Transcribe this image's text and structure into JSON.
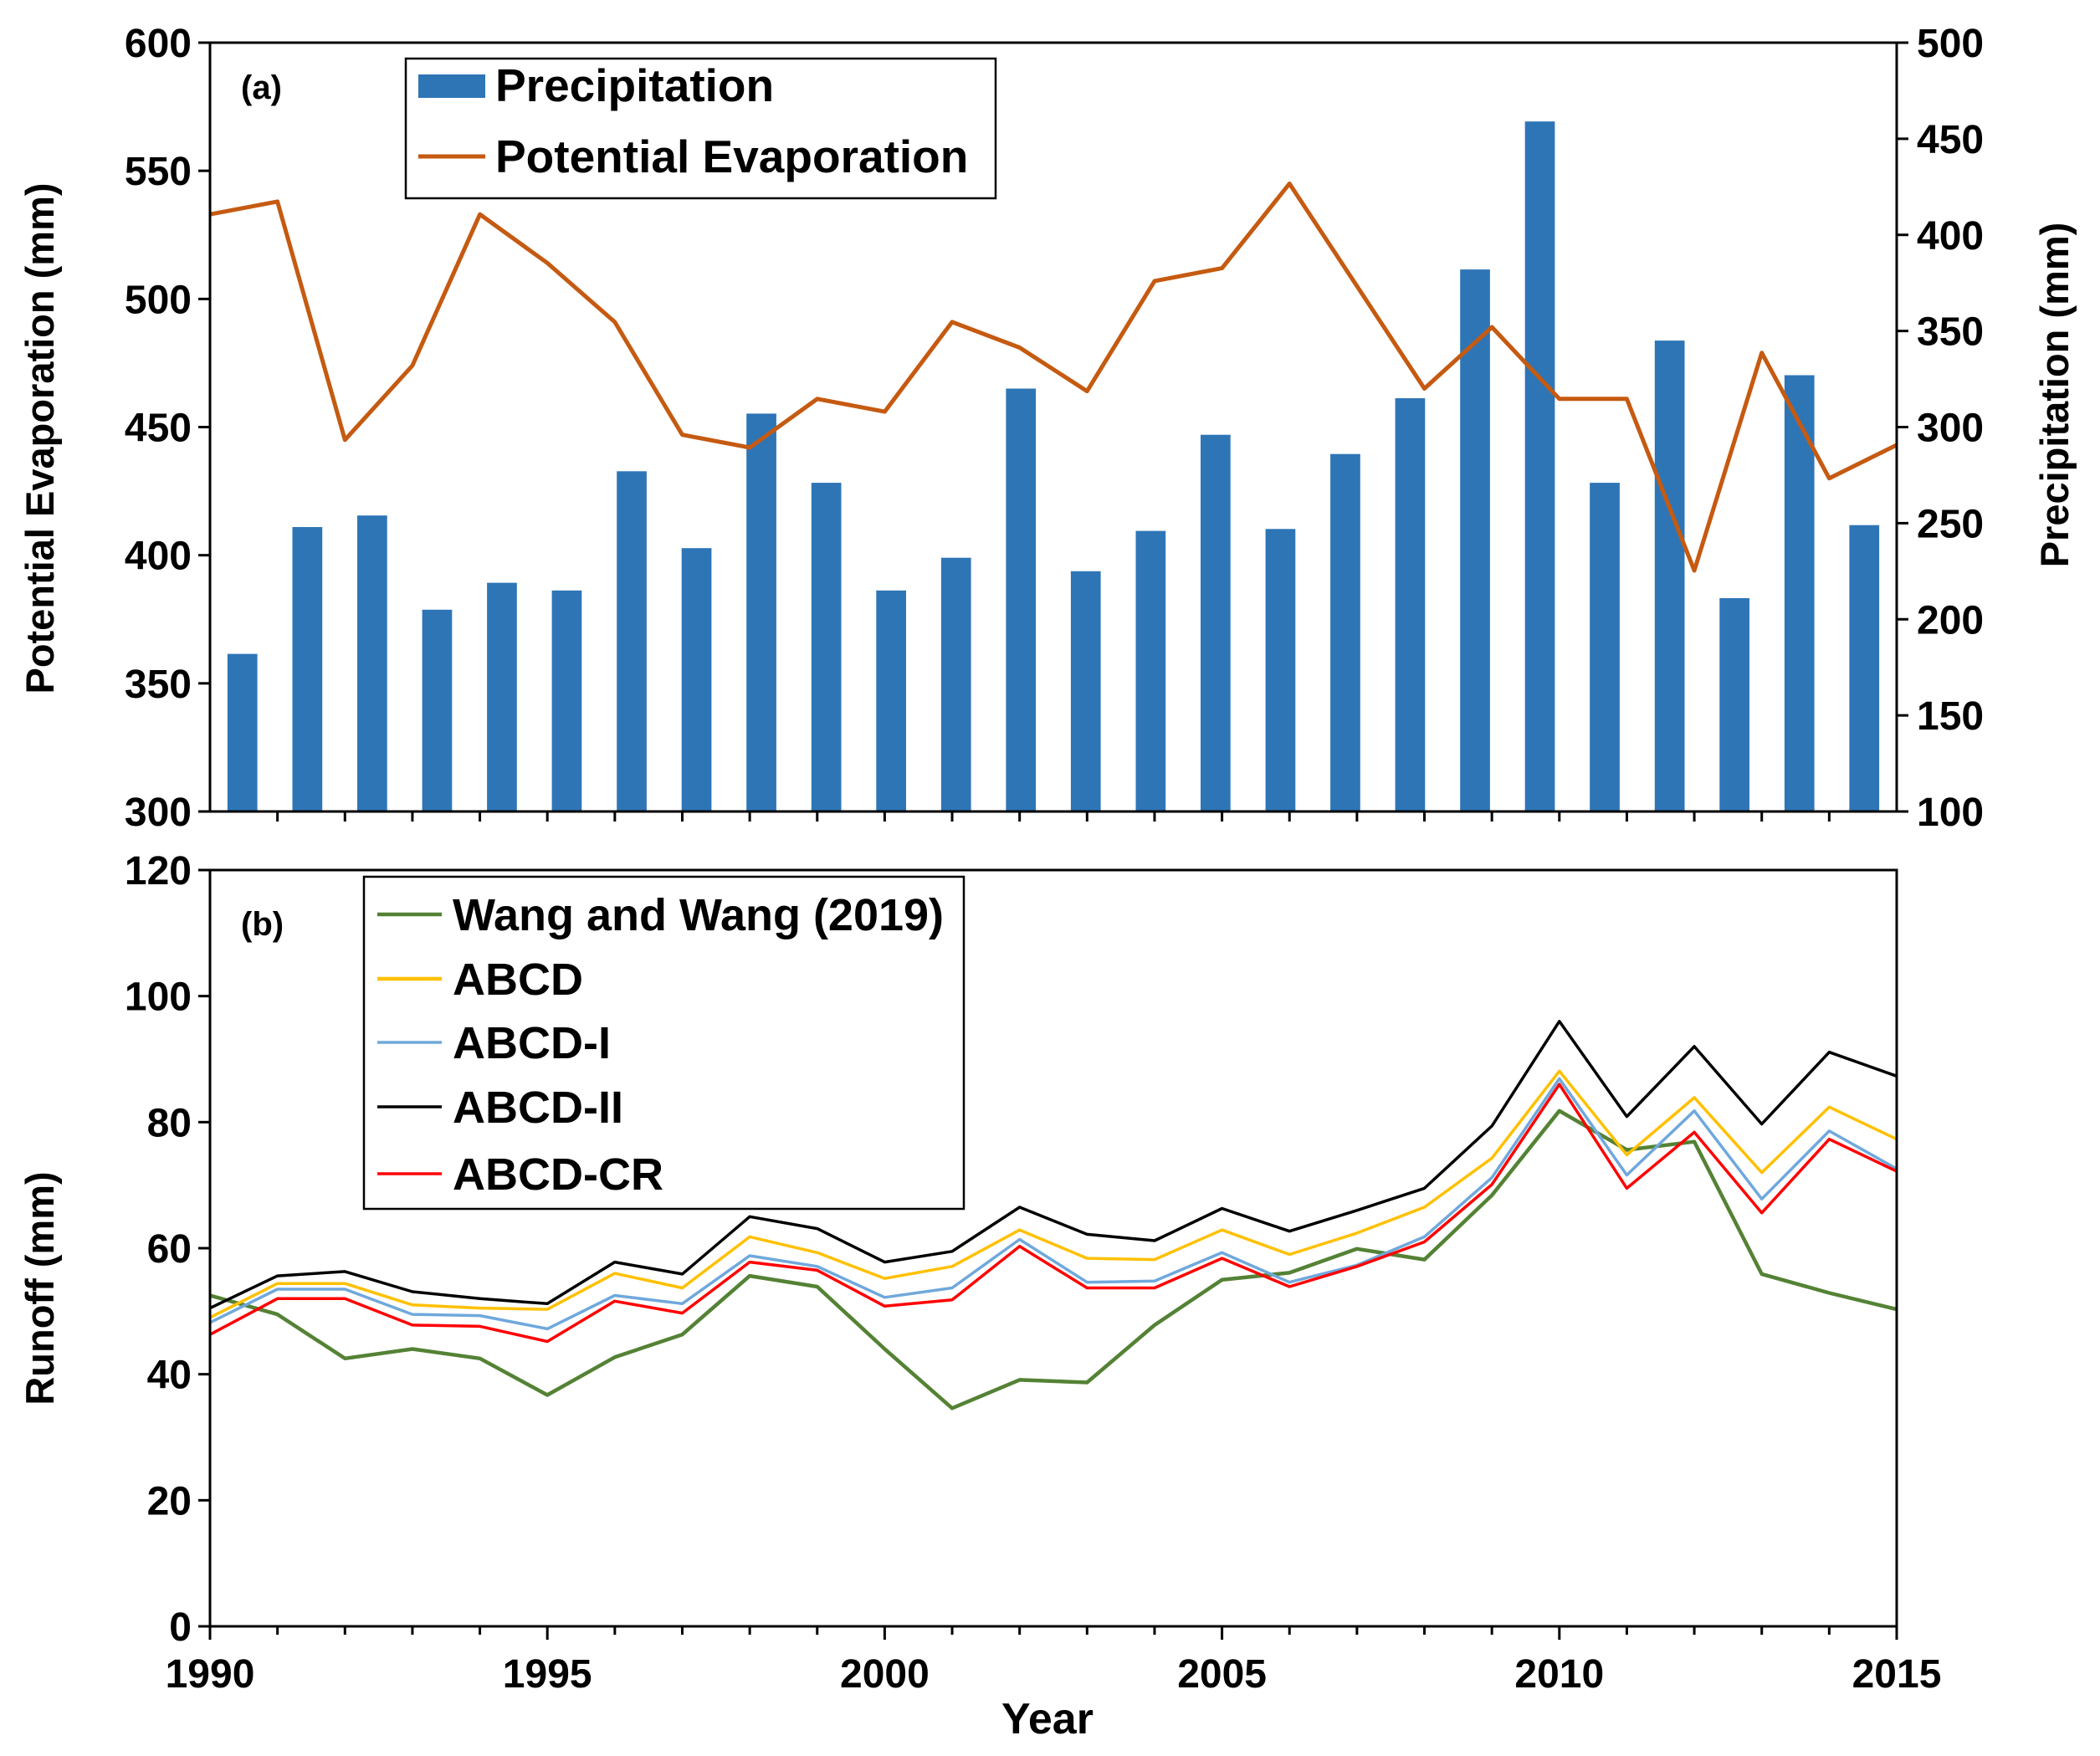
{
  "chart_data": [
    {
      "type": "bar",
      "panel_label": "(a)",
      "x": [
        1990,
        1991,
        1992,
        1993,
        1994,
        1995,
        1996,
        1997,
        1998,
        1999,
        2000,
        2001,
        2002,
        2003,
        2004,
        2005,
        2006,
        2007,
        2008,
        2009,
        2010,
        2011,
        2012,
        2013,
        2014,
        2015
      ],
      "series": [
        {
          "name": "Precipitation",
          "type": "bar",
          "secondary_axis": true,
          "color": "#2E75B6",
          "values": [
            182,
            248,
            254,
            205,
            219,
            215,
            277,
            237,
            307,
            271,
            215,
            232,
            320,
            225,
            246,
            296,
            247,
            286,
            315,
            382,
            459,
            271,
            345,
            211,
            327,
            249
          ]
        },
        {
          "name": "Potential Evaporation",
          "type": "line",
          "secondary_axis": false,
          "color": "#C55A11",
          "values": [
            533,
            538,
            445,
            474,
            533,
            514,
            491,
            447,
            442,
            461,
            456,
            491,
            481,
            464,
            507,
            512,
            545,
            505,
            465,
            489,
            461,
            461,
            394,
            479,
            430,
            443
          ]
        }
      ],
      "ylabel": "Potential Evaporation (mm)",
      "ylim": [
        300,
        600
      ],
      "yticks": [
        300,
        350,
        400,
        450,
        500,
        550,
        600
      ],
      "y2label": "Precipitation (mm)",
      "y2lim": [
        100,
        500
      ],
      "y2ticks": [
        100,
        150,
        200,
        250,
        300,
        350,
        400,
        450,
        500
      ],
      "grid": false,
      "legend": "top-left"
    },
    {
      "type": "line",
      "panel_label": "(b)",
      "x": [
        1990,
        1991,
        1992,
        1993,
        1994,
        1995,
        1996,
        1997,
        1998,
        1999,
        2000,
        2001,
        2002,
        2003,
        2004,
        2005,
        2006,
        2007,
        2008,
        2009,
        2010,
        2011,
        2012,
        2013,
        2014,
        2015
      ],
      "xlabel": "Year",
      "xlim": [
        1990,
        2015
      ],
      "xticks": [
        1990,
        1995,
        2000,
        2005,
        2010,
        2015
      ],
      "ylabel": "Runoff (mm)",
      "ylim": [
        0,
        120
      ],
      "yticks": [
        0,
        20,
        40,
        60,
        80,
        100,
        120
      ],
      "grid": false,
      "legend": "top-left",
      "series": [
        {
          "name": "Wang and Wang (2019)",
          "color": "#548235",
          "values": [
            52.5,
            49.5,
            42.5,
            44.0,
            42.5,
            36.7,
            42.7,
            46.3,
            55.6,
            53.9,
            44.0,
            34.6,
            39.1,
            38.7,
            47.8,
            55.0,
            56.1,
            59.9,
            58.2,
            68.4,
            81.8,
            75.6,
            76.9,
            55.9,
            52.9,
            50.3
          ]
        },
        {
          "name": "ABCD",
          "color": "#FFC000",
          "values": [
            49.0,
            54.4,
            54.4,
            51.0,
            50.5,
            50.3,
            56.0,
            53.7,
            61.8,
            59.3,
            55.2,
            57.1,
            62.9,
            58.4,
            58.2,
            62.9,
            59.0,
            62.4,
            66.5,
            74.3,
            88.1,
            74.8,
            83.9,
            72.0,
            82.4,
            77.3
          ]
        },
        {
          "name": "ABCD-I",
          "color": "#6FA8DC",
          "values": [
            48.2,
            53.5,
            53.5,
            49.5,
            49.3,
            47.2,
            52.5,
            51.2,
            58.8,
            57.1,
            52.2,
            53.7,
            61.4,
            54.6,
            54.8,
            59.3,
            54.6,
            57.3,
            61.8,
            71.2,
            86.9,
            71.6,
            81.8,
            67.8,
            78.6,
            72.6
          ]
        },
        {
          "name": "ABCD-II",
          "color": "#000000",
          "values": [
            50.5,
            55.6,
            56.3,
            53.1,
            52.0,
            51.2,
            57.8,
            55.9,
            65.0,
            63.1,
            57.8,
            59.5,
            66.5,
            62.2,
            61.2,
            66.3,
            62.7,
            66.0,
            69.5,
            79.4,
            96.0,
            80.9,
            92.0,
            79.7,
            91.1,
            87.3
          ]
        },
        {
          "name": "ABCD-CR",
          "color": "#FF0000",
          "values": [
            46.3,
            52.0,
            52.0,
            47.8,
            47.6,
            45.2,
            51.6,
            49.7,
            57.8,
            56.5,
            50.8,
            51.8,
            60.3,
            53.7,
            53.7,
            58.4,
            53.9,
            57.1,
            61.0,
            70.1,
            86.0,
            69.5,
            78.4,
            65.6,
            77.3,
            72.2
          ]
        }
      ]
    }
  ]
}
